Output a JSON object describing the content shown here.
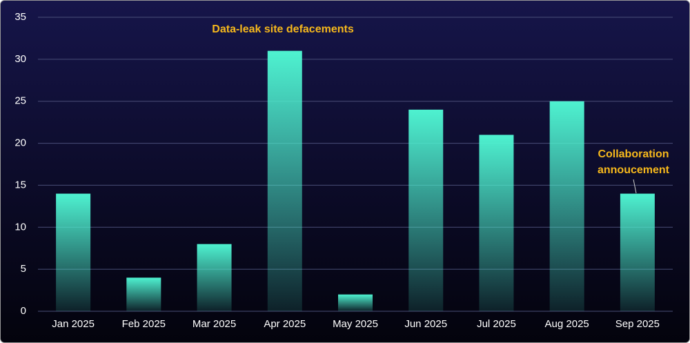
{
  "chart_data": {
    "type": "bar",
    "categories": [
      "Jan 2025",
      "Feb 2025",
      "Mar 2025",
      "Apr 2025",
      "May 2025",
      "Jun 2025",
      "Jul 2025",
      "Aug 2025",
      "Sep 2025"
    ],
    "values": [
      14,
      4,
      8,
      31,
      2,
      24,
      21,
      25,
      14
    ],
    "color": "#4ef2d0",
    "ylim": [
      0,
      35
    ],
    "yticks": [
      0,
      5,
      10,
      15,
      20,
      25,
      30,
      35
    ],
    "grid": true,
    "annotations": [
      [
        "Data-leak site defacements"
      ],
      [
        "Collaboration",
        "annoucement"
      ]
    ]
  }
}
